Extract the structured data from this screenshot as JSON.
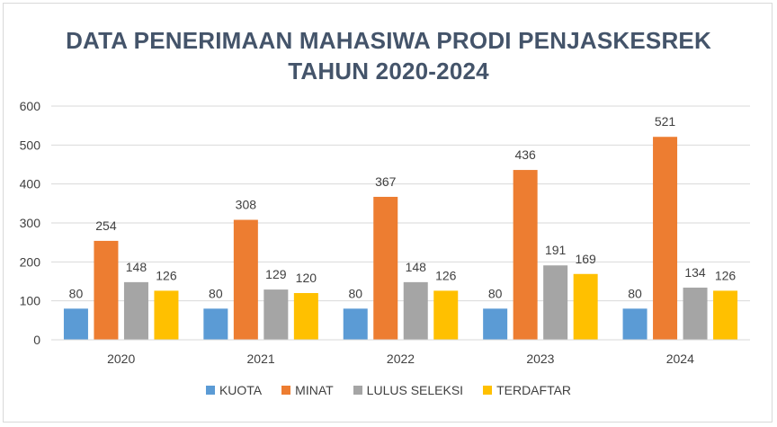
{
  "chart_data": {
    "type": "bar",
    "title_line1": "DATA PENERIMAAN MAHASIWA PRODI PENJASKESREK",
    "title_line2": "TAHUN 2020-2024",
    "categories": [
      "2020",
      "2021",
      "2022",
      "2023",
      "2024"
    ],
    "series": [
      {
        "name": "KUOTA",
        "color": "#5b9bd5",
        "values": [
          80,
          80,
          80,
          80,
          80
        ]
      },
      {
        "name": "MINAT",
        "color": "#ed7d31",
        "values": [
          254,
          308,
          367,
          436,
          521
        ]
      },
      {
        "name": "LULUS SELEKSI",
        "color": "#a5a5a5",
        "values": [
          148,
          129,
          148,
          191,
          134
        ]
      },
      {
        "name": "TERDAFTAR",
        "color": "#ffc000",
        "values": [
          126,
          120,
          126,
          169,
          126
        ]
      }
    ],
    "ylim": [
      0,
      600
    ],
    "yticks": [
      0,
      100,
      200,
      300,
      400,
      500,
      600
    ],
    "grid": true,
    "legend": "bottom"
  }
}
